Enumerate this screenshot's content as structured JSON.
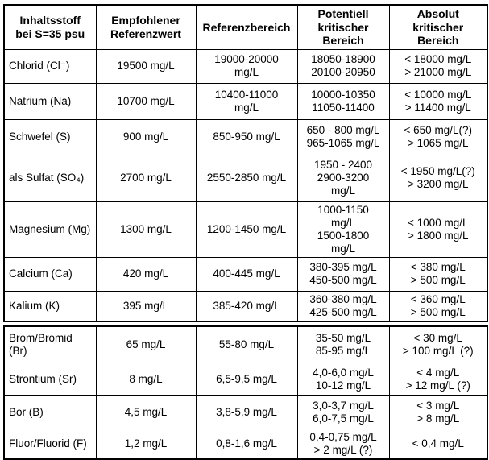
{
  "table": {
    "headers": {
      "substance": "Inhaltsstoff\nbei S=35 psu",
      "recommended": "Empfohlener\nReferenzwert",
      "reference_range": "Referenzbereich",
      "potential_critical": "Potentiell\nkritischer\nBereich",
      "absolute_critical": "Absolut\nkritischer\nBereich"
    },
    "rows": [
      {
        "name": "Chlorid (Cl⁻)",
        "recommended": "19500 mg/L",
        "reference_range": "19000-20000\nmg/L",
        "potential_critical": "18050-18900\n20100-20950",
        "absolute_critical": "< 18000 mg/L\n> 21000 mg/L"
      },
      {
        "name": "Natrium (Na)",
        "recommended": "10700 mg/L",
        "reference_range": "10400-11000\nmg/L",
        "potential_critical": "10000-10350\n11050-11400",
        "absolute_critical": "< 10000 mg/L\n> 11400 mg/L"
      },
      {
        "name": "Schwefel (S)",
        "recommended": "900 mg/L",
        "reference_range": "850-950 mg/L",
        "potential_critical": "650 - 800 mg/L\n965-1065 mg/L",
        "absolute_critical": "< 650 mg/L(?)\n> 1065 mg/L"
      },
      {
        "name": "als Sulfat (SO₄)",
        "recommended": "2700 mg/L",
        "reference_range": "2550-2850 mg/L",
        "potential_critical": "1950 - 2400\n2900-3200\nmg/L",
        "absolute_critical": "< 1950 mg/L(?)\n> 3200 mg/L"
      },
      {
        "name": "Magnesium (Mg)",
        "recommended": "1300 mg/L",
        "reference_range": "1200-1450 mg/L",
        "potential_critical": "1000-1150\nmg/L\n1500-1800\nmg/L",
        "absolute_critical": "< 1000 mg/L\n> 1800 mg/L"
      },
      {
        "name": "Calcium (Ca)",
        "recommended": "420 mg/L",
        "reference_range": "400-445 mg/L",
        "potential_critical": "380-395 mg/L\n450-500 mg/L",
        "absolute_critical": "< 380 mg/L\n> 500 mg/L"
      },
      {
        "name": "Kalium (K)",
        "recommended": "395 mg/L",
        "reference_range": "385-420 mg/L",
        "potential_critical": "360-380 mg/L\n425-500 mg/L",
        "absolute_critical": "< 360 mg/L\n> 500 mg/L"
      }
    ],
    "rows2": [
      {
        "name": "Brom/Bromid\n(Br)",
        "recommended": "65 mg/L",
        "reference_range": "55-80 mg/L",
        "potential_critical": "35-50 mg/L\n85-95 mg/L",
        "absolute_critical": "< 30 mg/L\n> 100 mg/L (?)"
      },
      {
        "name": "Strontium (Sr)",
        "recommended": "8 mg/L",
        "reference_range": "6,5-9,5 mg/L",
        "potential_critical": "4,0-6,0 mg/L\n10-12 mg/L",
        "absolute_critical": "< 4 mg/L\n> 12 mg/L (?)"
      },
      {
        "name": "Bor (B)",
        "recommended": "4,5 mg/L",
        "reference_range": "3,8-5,9 mg/L",
        "potential_critical": "3,0-3,7 mg/L\n6,0-7,5 mg/L",
        "absolute_critical": "< 3 mg/L\n> 8 mg/L"
      },
      {
        "name": "Fluor/Fluorid (F)",
        "recommended": "1,2 mg/L",
        "reference_range": "0,8-1,6 mg/L",
        "potential_critical": "0,4-0,75 mg/L\n> 2 mg/L (?)",
        "absolute_critical": "< 0,4 mg/L"
      }
    ]
  }
}
